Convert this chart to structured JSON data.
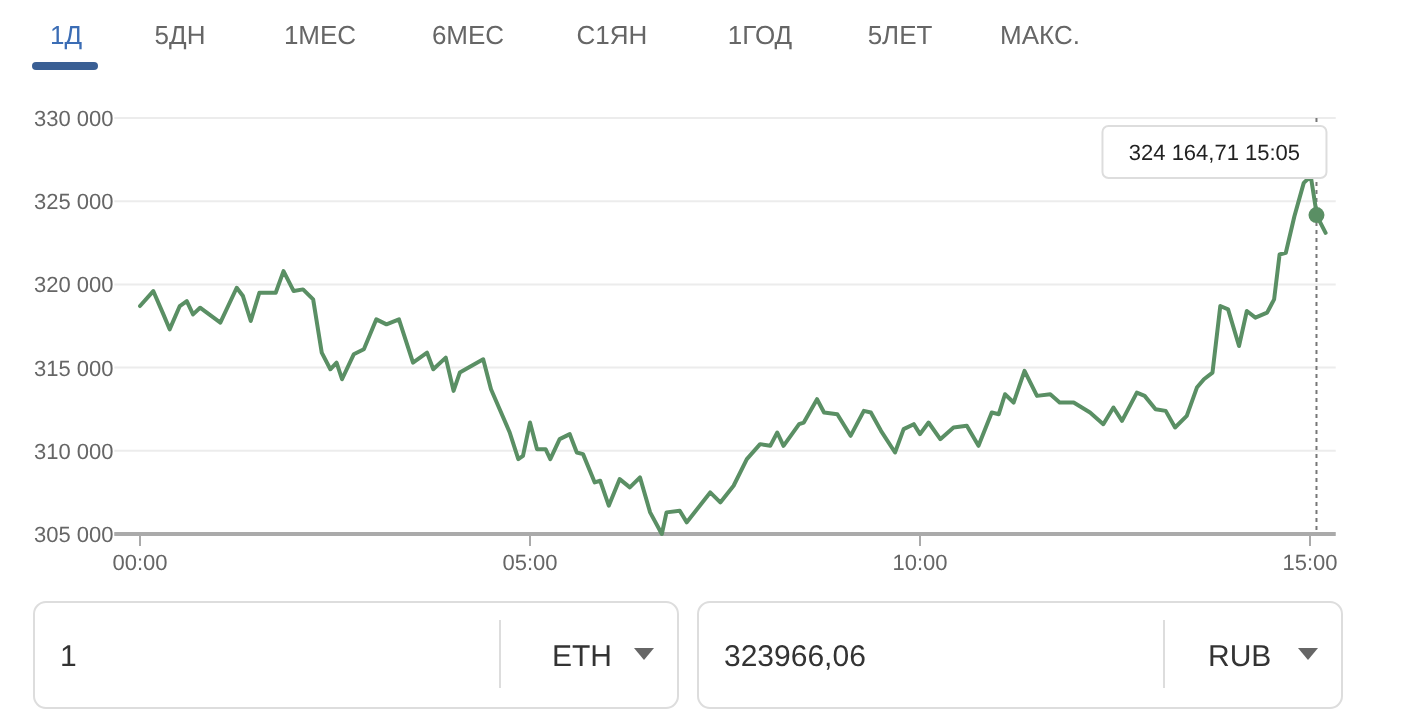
{
  "chart_data": {
    "type": "line",
    "xlim": [
      -0.33,
      15.33
    ],
    "ylim": [
      305000,
      330000
    ],
    "xticks": [
      {
        "value": 0,
        "label": "00:00"
      },
      {
        "value": 5,
        "label": "05:00"
      },
      {
        "value": 10,
        "label": "10:00"
      },
      {
        "value": 15,
        "label": "15:00"
      }
    ],
    "yticks": [
      {
        "value": 305000,
        "label": "305 000"
      },
      {
        "value": 310000,
        "label": "310 000"
      },
      {
        "value": 315000,
        "label": "315 000"
      },
      {
        "value": 320000,
        "label": "320 000"
      },
      {
        "value": 325000,
        "label": "325 000"
      },
      {
        "value": 330000,
        "label": "330 000"
      }
    ],
    "grid": "y",
    "marker": "none",
    "line_style": "solid",
    "series": [
      {
        "color": "#5a8f64",
        "x": [
          0,
          0.17,
          0.3,
          0.38,
          0.51,
          0.6,
          0.68,
          0.77,
          1.03,
          1.24,
          1.32,
          1.42,
          1.53,
          1.74,
          1.84,
          1.97,
          2.09,
          2.22,
          2.33,
          2.44,
          2.52,
          2.59,
          2.74,
          2.87,
          3.03,
          3.16,
          3.32,
          3.5,
          3.68,
          3.76,
          3.92,
          4.02,
          4.1,
          4.4,
          4.5,
          4.74,
          4.85,
          4.91,
          5.0,
          5.09,
          5.2,
          5.26,
          5.38,
          5.51,
          5.6,
          5.68,
          5.83,
          5.9,
          6.01,
          6.15,
          6.28,
          6.41,
          6.54,
          6.69,
          6.75,
          6.92,
          7.01,
          7.31,
          7.44,
          7.61,
          7.78,
          7.95,
          8.08,
          8.17,
          8.25,
          8.45,
          8.51,
          8.68,
          8.77,
          8.94,
          9.11,
          9.28,
          9.37,
          9.5,
          9.68,
          9.79,
          9.92,
          10.0,
          10.11,
          10.26,
          10.43,
          10.6,
          10.75,
          10.92,
          11.01,
          11.09,
          11.2,
          11.34,
          11.5,
          11.67,
          11.79,
          11.97,
          12.18,
          12.35,
          12.48,
          12.59,
          12.78,
          12.88,
          13.02,
          13.15,
          13.27,
          13.42,
          13.55,
          13.64,
          13.75,
          13.85,
          13.95,
          14.09,
          14.19,
          14.3,
          14.45,
          14.54,
          14.61,
          14.69,
          14.8,
          14.92,
          15.01,
          15.09,
          15.2
        ],
        "values": [
          318700,
          319600,
          318200,
          317300,
          318700,
          319000,
          318200,
          318600,
          317700,
          319800,
          319300,
          317800,
          319500,
          319500,
          320800,
          319600,
          319700,
          319100,
          315900,
          314900,
          315300,
          314300,
          315800,
          316100,
          317900,
          317600,
          317900,
          315300,
          315900,
          314900,
          315600,
          313600,
          314700,
          315500,
          313700,
          311100,
          309500,
          309700,
          311700,
          310100,
          310100,
          309500,
          310700,
          311000,
          309900,
          309800,
          308100,
          308200,
          306700,
          308300,
          307800,
          308400,
          306300,
          305000,
          306300,
          306400,
          305700,
          307500,
          306900,
          307900,
          309500,
          310400,
          310300,
          311100,
          310300,
          311600,
          311700,
          313100,
          312300,
          312200,
          310900,
          312400,
          312300,
          311200,
          309900,
          311300,
          311600,
          311000,
          311700,
          310700,
          311400,
          311500,
          310300,
          312300,
          312200,
          313400,
          312900,
          314800,
          313300,
          313400,
          312900,
          312900,
          312300,
          311600,
          312600,
          311800,
          313500,
          313300,
          312500,
          312400,
          311400,
          312100,
          313800,
          314300,
          314700,
          318700,
          318500,
          316300,
          318400,
          318000,
          318300,
          319100,
          321800,
          321900,
          324100,
          326100,
          326500,
          324100,
          323100
        ]
      }
    ],
    "ref_lines": [
      {
        "axis": "x",
        "value": 15.083,
        "line_style": "dotted",
        "color": "#777777"
      }
    ],
    "annotations": [
      {
        "text": "324 164,71  15:05",
        "x": 15.083,
        "y": 324164.71
      },
      "1Д",
      "5ДН",
      "1МЕС",
      "6МЕС",
      "С1ЯН",
      "1ГОД",
      "5ЛЕТ",
      "МАКС.",
      "1",
      "ETH",
      "323966,06",
      "RUB"
    ]
  }
}
